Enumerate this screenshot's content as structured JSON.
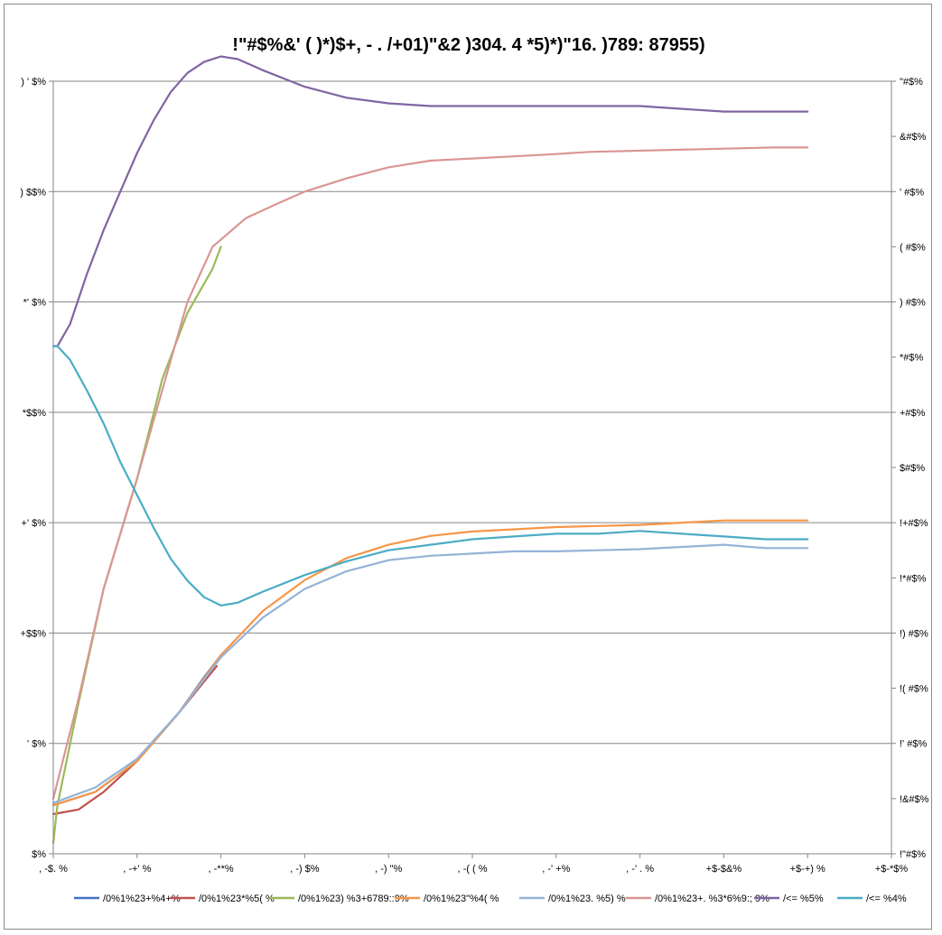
{
  "chart_data": {
    "type": "line",
    "title": "!\"#$%&' ( )*)$+, - . /+01)\"&2 )304. 4 *5)*)\"16. )789: 87955)",
    "x_ticks": [
      ", -$. %",
      ", -+' %",
      ", -**%",
      ", -) $%",
      ", -) \"%",
      ", -( ( %",
      ", -' +%",
      ", -' . %",
      "+$-$&%",
      "+$-+) %",
      "+$-*$%"
    ],
    "y_left_ticks": [
      "$%",
      "' $%",
      "+$$%",
      "+' $%",
      "*$$%",
      "*' $%",
      ") $$%",
      ") ' $%"
    ],
    "y_right_ticks": [
      "!\"#$%",
      "!&#$%",
      "!' #$%",
      "!( #$%",
      "!) #$%",
      "!*#$%",
      "!+#$%",
      "$#$%",
      "+#$%",
      "*#$%",
      ") #$%",
      "( #$%",
      "' #$%",
      "&#$%",
      "\"#$%"
    ],
    "y_left_range": [
      0,
      350
    ],
    "y_right_range": [
      0,
      14
    ],
    "x_range": [
      0,
      10
    ],
    "grid": "horizontal",
    "legend_position": "bottom",
    "series": [
      {
        "name": "/0%1%23+%4+%",
        "color": "#4472c4",
        "axis": "left",
        "x": [
          0,
          0.5,
          1.0,
          1.5,
          1.8,
          2.0
        ],
        "y": [
          22,
          28,
          42,
          64,
          80,
          90
        ]
      },
      {
        "name": "/0%1%23*%5( %",
        "color": "#c0504d",
        "axis": "left",
        "x": [
          0,
          0.3,
          0.6,
          1.0,
          1.5,
          1.8,
          1.95
        ],
        "y": [
          18,
          20,
          28,
          42,
          64,
          78,
          85
        ]
      },
      {
        "name": "/0%1%23) %3+6789::9%",
        "color": "#9bbb59",
        "axis": "left",
        "x": [
          0,
          0.05,
          0.3,
          0.6,
          1.0,
          1.3,
          1.6,
          1.9,
          2.0
        ],
        "y": [
          5,
          22,
          68,
          120,
          170,
          215,
          245,
          265,
          275
        ]
      },
      {
        "name": "/0%1%23\"%4( %",
        "color": "#f79646",
        "axis": "left",
        "x": [
          0,
          0.5,
          1.0,
          1.5,
          2.0,
          2.5,
          3.0,
          3.5,
          4.0,
          4.5,
          5.0,
          5.5,
          6.0,
          6.5,
          7.0,
          7.5,
          8.0,
          8.5,
          9.0
        ],
        "y": [
          22,
          28,
          42,
          64,
          90,
          110,
          124,
          134,
          140,
          144,
          146,
          147,
          148,
          148.5,
          149,
          150,
          151,
          151,
          151
        ]
      },
      {
        "name": "/0%1%23. %5) %",
        "color": "#95b3d7",
        "axis": "left",
        "x": [
          0,
          0.5,
          1.0,
          1.5,
          2.0,
          2.5,
          3.0,
          3.5,
          4.0,
          4.5,
          5.0,
          5.5,
          6.0,
          6.5,
          7.0,
          7.5,
          8.0,
          8.5,
          9.0
        ],
        "y": [
          23,
          30,
          43,
          64,
          89,
          107,
          120,
          128,
          133,
          135,
          136,
          137,
          137,
          137.5,
          138,
          139,
          140,
          138.5,
          138.5
        ]
      },
      {
        "name": "/0%1%23+. %3*6%9:; 9%",
        "color": "#d99694",
        "axis": "left",
        "x": [
          0,
          0.3,
          0.6,
          1.0,
          1.3,
          1.6,
          1.9,
          2.3,
          2.7,
          3.0,
          3.5,
          4.0,
          4.5,
          5.0,
          5.5,
          6.0,
          6.4,
          8.6,
          9.0
        ],
        "y": [
          25,
          70,
          120,
          170,
          210,
          250,
          275,
          288,
          295,
          300,
          306,
          311,
          314,
          315,
          316,
          317,
          318,
          320,
          320
        ]
      },
      {
        "name": "/<= %5%",
        "color": "#8064a2",
        "axis": "right",
        "x": [
          0,
          0.05,
          0.2,
          0.4,
          0.6,
          0.8,
          1.0,
          1.2,
          1.4,
          1.6,
          1.8,
          2.0,
          2.2,
          2.5,
          3.0,
          3.5,
          4.0,
          4.5,
          5.0,
          6.0,
          7.0,
          7.5,
          8.0,
          8.5,
          9.0
        ],
        "y": [
          9.2,
          9.2,
          9.6,
          10.5,
          11.3,
          12.0,
          12.7,
          13.3,
          13.8,
          14.15,
          14.35,
          14.45,
          14.4,
          14.2,
          13.9,
          13.7,
          13.6,
          13.55,
          13.55,
          13.55,
          13.55,
          13.5,
          13.45,
          13.45,
          13.45
        ]
      },
      {
        "name": "/<= %4%",
        "color": "#4bacc6",
        "axis": "right",
        "x": [
          0,
          0.05,
          0.2,
          0.4,
          0.6,
          0.8,
          1.0,
          1.2,
          1.4,
          1.6,
          1.8,
          2.0,
          2.2,
          2.5,
          3.0,
          3.5,
          4.0,
          4.5,
          5.0,
          5.5,
          6.0,
          6.5,
          7.0,
          7.5,
          8.0,
          8.5,
          9.0
        ],
        "y": [
          9.2,
          9.2,
          8.95,
          8.4,
          7.8,
          7.1,
          6.5,
          5.9,
          5.35,
          4.95,
          4.65,
          4.5,
          4.55,
          4.75,
          5.05,
          5.3,
          5.5,
          5.6,
          5.7,
          5.75,
          5.8,
          5.8,
          5.85,
          5.8,
          5.75,
          5.7,
          5.7
        ]
      }
    ]
  }
}
